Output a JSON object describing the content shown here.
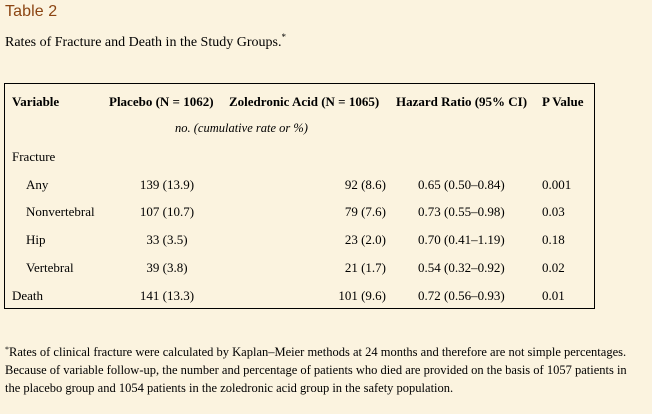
{
  "table_label": "Table 2",
  "caption": {
    "text": "Rates of Fracture and Death in the Study Groups.",
    "marker": "*"
  },
  "table": {
    "headers": {
      "variable": "Variable",
      "placebo": "Placebo (N = 1062)",
      "zoledronic": "Zoledronic Acid (N = 1065)",
      "hazard_ratio": "Hazard Ratio (95% CI)",
      "p_value": "P Value"
    },
    "subheader": "no. (cumulative rate or %)",
    "section_label": "Fracture",
    "rows": [
      {
        "variable": "Any",
        "placebo": "139 (13.9)",
        "zoledronic": "92 (8.6)",
        "hazard_ratio": "0.65 (0.50–0.84)",
        "p_value": "0.001"
      },
      {
        "variable": "Nonvertebral",
        "placebo": "107 (10.7)",
        "zoledronic": "79 (7.6)",
        "hazard_ratio": "0.73 (0.55–0.98)",
        "p_value": "0.03"
      },
      {
        "variable": "Hip",
        "placebo": "33 (3.5)",
        "zoledronic": "23 (2.0)",
        "hazard_ratio": "0.70 (0.41–1.19)",
        "p_value": "0.18"
      },
      {
        "variable": "Vertebral",
        "placebo": "39 (3.8)",
        "zoledronic": "21 (1.7)",
        "hazard_ratio": "0.54 (0.32–0.92)",
        "p_value": "0.02"
      },
      {
        "variable": "Death",
        "placebo": "141 (13.3)",
        "zoledronic": "101 (9.6)",
        "hazard_ratio": "0.72 (0.56–0.93)",
        "p_value": "0.01"
      }
    ]
  },
  "footnote": {
    "marker": "*",
    "text": "Rates of clinical fracture were calculated by Kaplan–Meier methods at 24 months and therefore are not simple percentages. Because of variable follow-up, the number and percentage of patients who died are provided on the basis of 1057 patients in the placebo group and 1054 patients in the zoledronic acid group in the safety population."
  },
  "colors": {
    "background": "#fbf3df",
    "table_label": "#8b4513",
    "text": "#000000"
  }
}
